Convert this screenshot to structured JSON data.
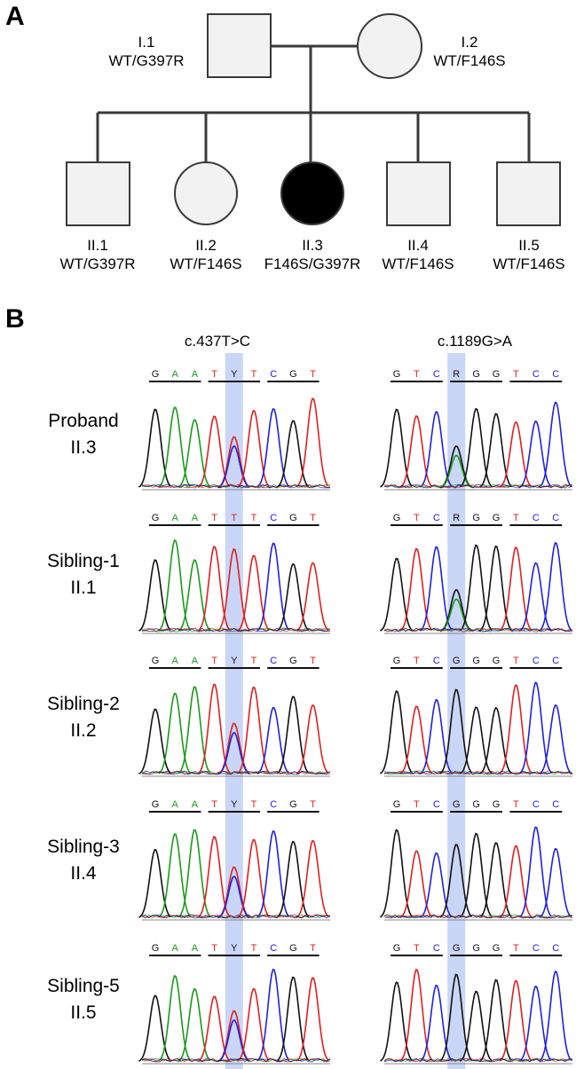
{
  "panels": {
    "a_letter": "A",
    "b_letter": "B"
  },
  "pedigree": {
    "parents": [
      {
        "id": "I.1",
        "genotype": "WT/G397R",
        "sex": "male",
        "affected": false
      },
      {
        "id": "I.2",
        "genotype": "WT/F146S",
        "sex": "female",
        "affected": false
      }
    ],
    "children": [
      {
        "id": "II.1",
        "genotype": "WT/G397R",
        "sex": "male",
        "affected": false
      },
      {
        "id": "II.2",
        "genotype": "WT/F146S",
        "sex": "female",
        "affected": false
      },
      {
        "id": "II.3",
        "genotype": "F146S/G397R",
        "sex": "female",
        "affected": true
      },
      {
        "id": "II.4",
        "genotype": "WT/F146S",
        "sex": "male",
        "affected": false
      },
      {
        "id": "II.5",
        "genotype": "WT/F146S",
        "sex": "male",
        "affected": false
      }
    ],
    "colors": {
      "unaffected_fill": "#f2f2f2",
      "affected_fill": "#000000",
      "line": "#3a3a3a"
    }
  },
  "chromatograms": {
    "mutations": [
      {
        "title": "c.437T>C",
        "highlight_index": 4
      },
      {
        "title": "c.1189G>A",
        "highlight_index": 3
      }
    ],
    "rows": [
      {
        "line1": "Proband",
        "line2": "II.3",
        "left_bases": [
          "G",
          "A",
          "A",
          "T",
          "Y",
          "T",
          "C",
          "G",
          "T"
        ],
        "right_bases": [
          "G",
          "T",
          "C",
          "R",
          "G",
          "G",
          "T",
          "C",
          "C"
        ]
      },
      {
        "line1": "Sibling-1",
        "line2": "II.1",
        "left_bases": [
          "G",
          "A",
          "A",
          "T",
          "T",
          "T",
          "C",
          "G",
          "T"
        ],
        "right_bases": [
          "G",
          "T",
          "C",
          "R",
          "G",
          "G",
          "T",
          "C",
          "C"
        ]
      },
      {
        "line1": "Sibling-2",
        "line2": "II.2",
        "left_bases": [
          "G",
          "A",
          "A",
          "T",
          "Y",
          "T",
          "C",
          "G",
          "T"
        ],
        "right_bases": [
          "G",
          "T",
          "C",
          "G",
          "G",
          "G",
          "T",
          "C",
          "C"
        ]
      },
      {
        "line1": "Sibling-3",
        "line2": "II.4",
        "left_bases": [
          "G",
          "A",
          "A",
          "T",
          "Y",
          "T",
          "C",
          "G",
          "T"
        ],
        "right_bases": [
          "G",
          "T",
          "C",
          "G",
          "G",
          "G",
          "T",
          "C",
          "C"
        ]
      },
      {
        "line1": "Sibling-5",
        "line2": "II.5",
        "left_bases": [
          "G",
          "A",
          "A",
          "T",
          "Y",
          "T",
          "C",
          "G",
          "T"
        ],
        "right_bases": [
          "G",
          "T",
          "C",
          "G",
          "G",
          "G",
          "T",
          "C",
          "C"
        ]
      }
    ],
    "base_colors": {
      "A": "#1a9a1a",
      "G": "#111111",
      "T": "#e02020",
      "C": "#2020e0",
      "Y": "#111111",
      "R": "#111111"
    },
    "highlight_color": "#c9d6f7"
  }
}
